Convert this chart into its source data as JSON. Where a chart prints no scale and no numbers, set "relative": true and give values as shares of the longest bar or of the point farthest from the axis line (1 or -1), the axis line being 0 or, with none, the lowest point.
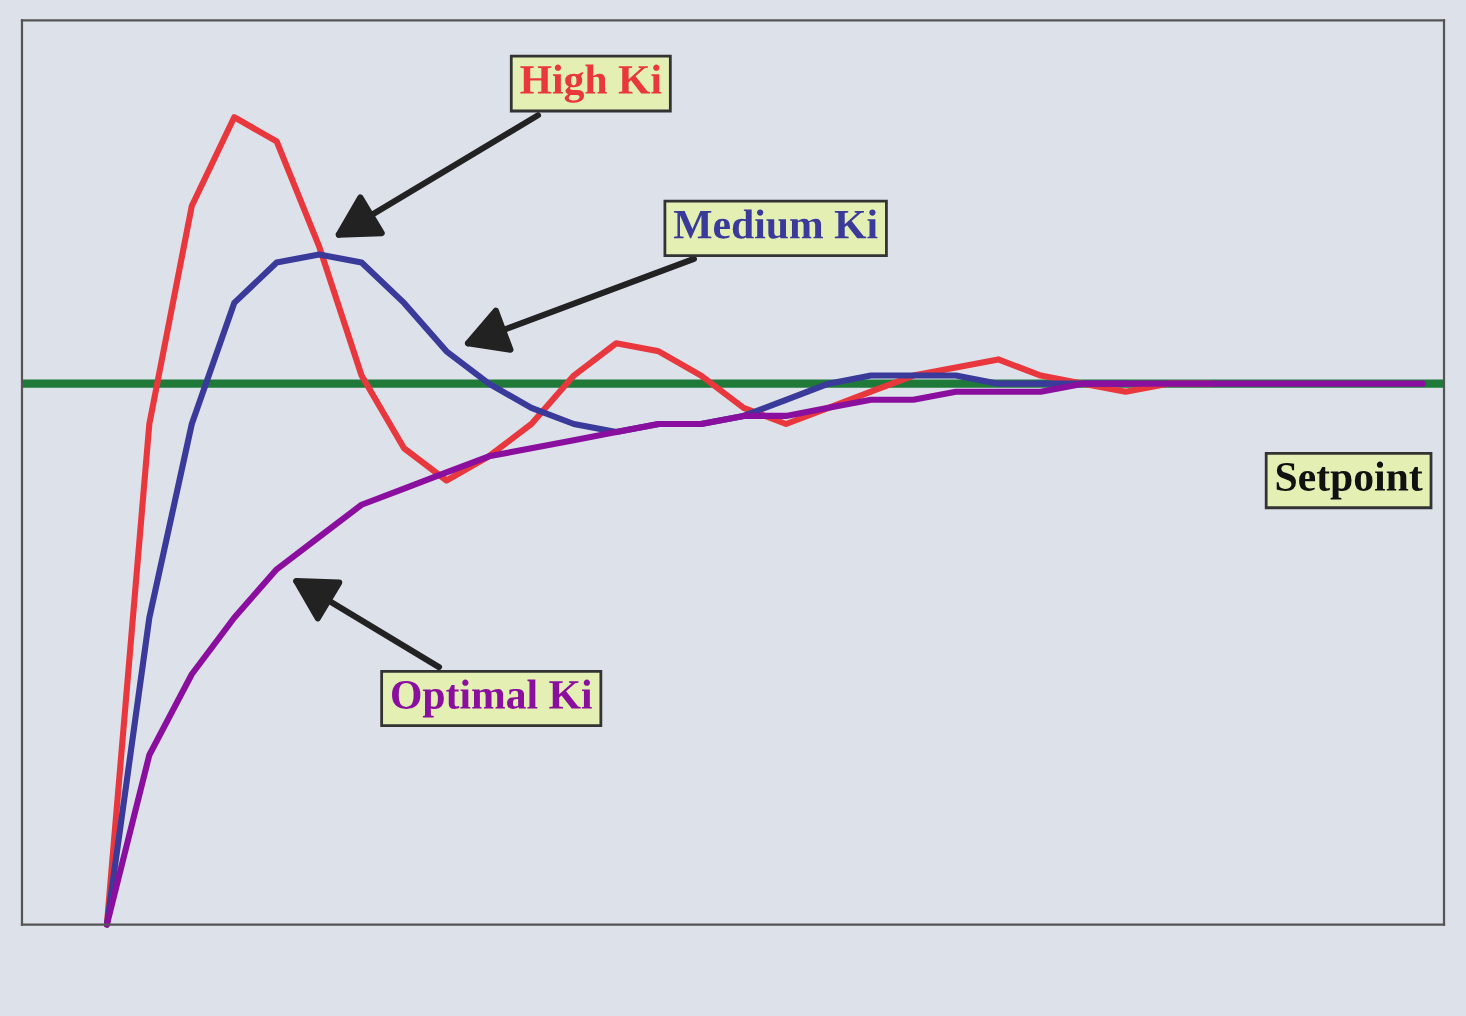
{
  "chart_data": {
    "type": "line",
    "relative": true,
    "categories": [
      null,
      null,
      null,
      null,
      null,
      null,
      null,
      null,
      null,
      null,
      null,
      null,
      null,
      null,
      null,
      null,
      null,
      null,
      null,
      null,
      null,
      null,
      null,
      null,
      null,
      null,
      null,
      null,
      null,
      null,
      null,
      null
    ],
    "series": [
      {
        "name": "High Ki",
        "color": "#e8383d",
        "values": [
          0,
          0.62,
          0.89,
          1.0,
          0.97,
          0.84,
          0.68,
          0.59,
          0.55,
          0.58,
          0.62,
          0.68,
          0.72,
          0.71,
          0.68,
          0.64,
          0.62,
          0.64,
          0.66,
          0.68,
          0.69,
          0.7,
          0.68,
          0.67,
          0.66,
          0.67,
          0.67,
          null,
          null,
          null,
          null,
          null
        ]
      },
      {
        "name": "Medium Ki",
        "color": "#3a3a9a",
        "values": [
          0,
          0.38,
          0.62,
          0.77,
          0.82,
          0.83,
          0.82,
          0.77,
          0.71,
          0.67,
          0.64,
          0.62,
          0.61,
          0.62,
          0.62,
          0.63,
          0.65,
          0.67,
          0.68,
          0.68,
          0.68,
          0.67,
          0.67,
          0.67,
          0.67,
          null,
          null,
          null,
          null,
          null,
          null,
          null
        ]
      },
      {
        "name": "Optimal Ki",
        "color": "#8b0f9e",
        "values": [
          0,
          0.21,
          0.31,
          0.38,
          0.44,
          0.48,
          0.52,
          0.54,
          0.56,
          0.58,
          0.59,
          0.6,
          0.61,
          0.62,
          0.62,
          0.63,
          0.63,
          0.64,
          0.65,
          0.65,
          0.66,
          0.66,
          0.66,
          0.67,
          0.67,
          0.67,
          0.67,
          0.67,
          0.67,
          0.67,
          0.67,
          0.67
        ]
      }
    ],
    "ref_lines": [
      {
        "axis": "y",
        "value": 0.67,
        "label": "Setpoint",
        "color": "#1f7a3a"
      }
    ]
  }
}
